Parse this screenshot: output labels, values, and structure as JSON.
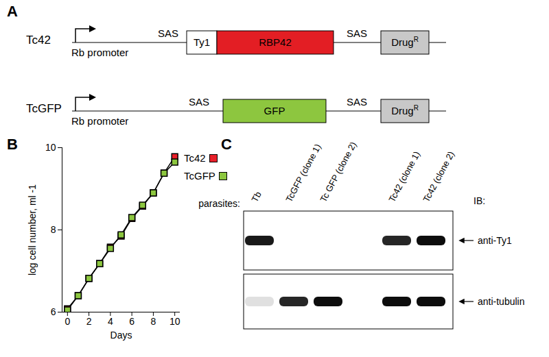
{
  "panel_labels": [
    "A",
    "B",
    "C"
  ],
  "diagram": {
    "constructs": [
      {
        "name": "Tc42",
        "promoter": "Rb promoter",
        "elements": [
          {
            "kind": "site",
            "label": "SAS"
          },
          {
            "kind": "box",
            "label": "Ty1",
            "color": "#ffffff"
          },
          {
            "kind": "box",
            "label": "RBP42",
            "color": "#e31e24"
          },
          {
            "kind": "site",
            "label": "SAS"
          },
          {
            "kind": "box",
            "label": "Drug",
            "sup": "R",
            "color": "#c8c8c8"
          }
        ]
      },
      {
        "name": "TcGFP",
        "promoter": "Rb promoter",
        "elements": [
          {
            "kind": "site",
            "label": "SAS"
          },
          {
            "kind": "box",
            "label": "GFP",
            "color": "#8dc63f"
          },
          {
            "kind": "site",
            "label": "SAS"
          },
          {
            "kind": "box",
            "label": "Drug",
            "sup": "R",
            "color": "#c8c8c8"
          }
        ]
      }
    ]
  },
  "chart_data": {
    "type": "line",
    "x_label": "Days",
    "y_label": "log cell number, ml -1",
    "x": [
      0,
      1,
      2,
      3,
      4,
      5,
      6,
      7,
      8,
      9,
      10
    ],
    "series": [
      {
        "name": "Tc42",
        "color": "#e8202a",
        "marker": "square",
        "values": [
          6.08,
          6.4,
          6.82,
          7.18,
          7.58,
          7.85,
          8.28,
          8.58,
          8.9,
          9.38,
          9.78
        ]
      },
      {
        "name": "TcGFP",
        "color": "#8cc63f",
        "marker": "square",
        "values": [
          6.05,
          6.4,
          6.82,
          7.18,
          7.55,
          7.88,
          8.3,
          8.6,
          8.9,
          9.38,
          9.65
        ]
      }
    ],
    "xlim": [
      -0.5,
      10.5
    ],
    "xticks": [
      0,
      2,
      4,
      6,
      8,
      10
    ],
    "ylim": [
      6,
      10
    ],
    "yticks": [
      6,
      8,
      10
    ],
    "grid": false
  },
  "blot": {
    "header": "parasites:",
    "ib_label": "IB:",
    "lanes": [
      "Tb",
      "TcGFP (clone 1)",
      "Tc GFP (clone 2)",
      null,
      "Tc42 (clone 1)",
      "Tc42 (clone 2)"
    ],
    "panels": [
      {
        "antibody": "anti-Ty1",
        "intensity": [
          0.9,
          0,
          0,
          0,
          0.85,
          0.95
        ]
      },
      {
        "antibody": "anti-tubulin",
        "intensity": [
          0.12,
          0.85,
          0.95,
          0,
          0.95,
          0.95
        ]
      }
    ]
  }
}
